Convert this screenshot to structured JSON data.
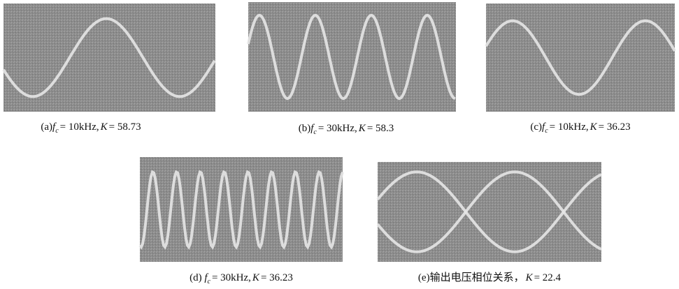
{
  "panels": [
    {
      "label": "(a)",
      "f": "f",
      "sub": "c",
      "freq": "= 10kHz,",
      "k": "K",
      "kval": "= 58.73"
    },
    {
      "label": "(b)",
      "f": "f",
      "sub": "c",
      "freq": "= 30kHz,",
      "k": "K",
      "kval": "= 58.3"
    },
    {
      "label": "(c)",
      "f": "f",
      "sub": "c",
      "freq": "= 10kHz,",
      "k": "K",
      "kval": "= 36.23"
    },
    {
      "label": "(d) ",
      "f": "f",
      "sub": "c",
      "freq": "= 30kHz,",
      "k": "K",
      "kval": "= 36.23"
    },
    {
      "label": "(e)输出电压相位关系，",
      "k": "K",
      "kval": "= 22.4"
    }
  ]
}
